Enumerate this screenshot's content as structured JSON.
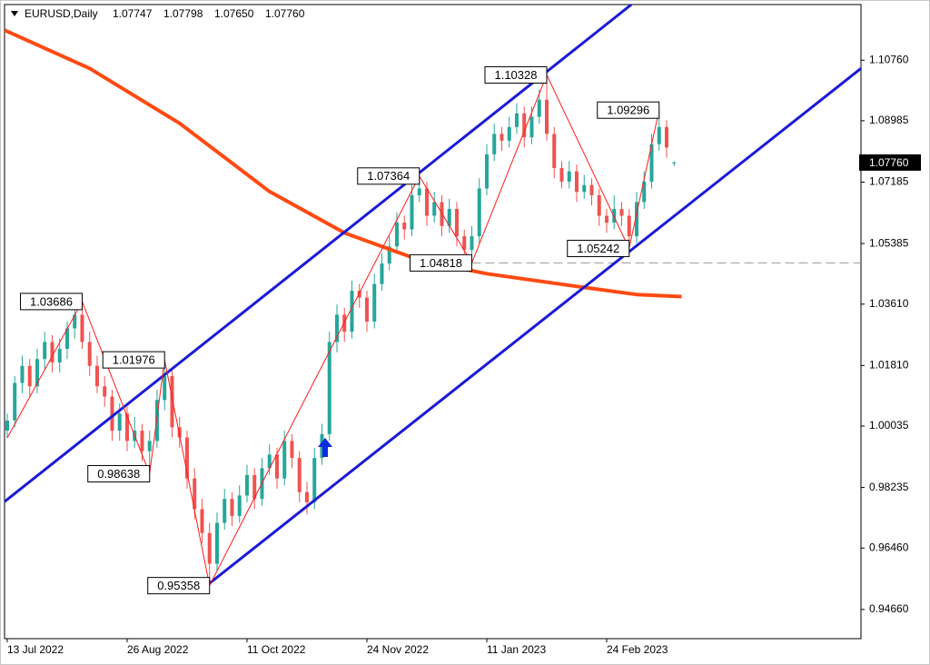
{
  "chart_data": {
    "type": "candlestick",
    "symbol": "EURUSD,Daily",
    "quote": [
      "1.07747",
      "1.07798",
      "1.07650",
      "1.07760"
    ],
    "last_label": "1.07760",
    "up_color": "#26a69a",
    "down_color": "#ef5350",
    "xlim": [
      -0.36,
      113.94
    ],
    "ylim": [
      0.93804,
      1.12391
    ],
    "xticks": [
      {
        "value": 0,
        "label": "13 Jul 2022"
      },
      {
        "value": 16,
        "label": "26 Aug 2022"
      },
      {
        "value": 32,
        "label": "11 Oct 2022"
      },
      {
        "value": 48,
        "label": "24 Nov 2022"
      },
      {
        "value": 64,
        "label": "11 Jan 2023"
      },
      {
        "value": 80,
        "label": "24 Feb 2023"
      }
    ],
    "yticks": [
      {
        "value": 1.1076,
        "label": "1.10760"
      },
      1.08985,
      1.07185,
      1.05385,
      {
        "value": 1.0361,
        "label": "1.03610"
      },
      {
        "value": 1.0181,
        "label": "1.01810"
      },
      1.00035,
      0.98235,
      {
        "value": 0.9646,
        "label": "0.96460"
      },
      {
        "value": 0.9466,
        "label": "0.94660"
      }
    ],
    "candles": [
      [
        0.999,
        1.004,
        0.9969,
        1.002
      ],
      [
        1.002,
        1.015,
        1.0,
        1.013
      ],
      [
        1.013,
        1.021,
        1.01,
        1.018
      ],
      [
        1.018,
        1.02,
        1.009,
        1.012
      ],
      [
        1.012,
        1.023,
        1.01,
        1.02
      ],
      [
        1.02,
        1.028,
        1.017,
        1.025
      ],
      [
        1.025,
        1.027,
        1.016,
        1.019
      ],
      [
        1.019,
        1.026,
        1.016,
        1.023
      ],
      [
        1.023,
        1.031,
        1.02,
        1.029
      ],
      [
        1.029,
        1.035,
        1.026,
        1.033
      ],
      [
        1.033,
        1.03686,
        1.023,
        1.025
      ],
      [
        1.025,
        1.028,
        1.015,
        1.018
      ],
      [
        1.018,
        1.021,
        1.01,
        1.012
      ],
      [
        1.012,
        1.015,
        1.006,
        1.009
      ],
      [
        1.009,
        1.011,
        0.996,
        0.999
      ],
      [
        0.999,
        1.007,
        0.996,
        1.004
      ],
      [
        1.004,
        1.006,
        0.993,
        0.996
      ],
      [
        0.996,
        1.003,
        0.994,
        0.999
      ],
      [
        0.999,
        1.001,
        0.99,
        0.993
      ],
      [
        0.993,
        0.999,
        0.98638,
        0.996
      ],
      [
        0.996,
        1.011,
        0.994,
        1.008
      ],
      [
        1.008,
        1.01976,
        1.005,
        1.015
      ],
      [
        1.015,
        1.017,
        0.997,
        1.0
      ],
      [
        1.0,
        1.003,
        0.994,
        0.997
      ],
      [
        0.997,
        0.999,
        0.982,
        0.985
      ],
      [
        0.985,
        0.988,
        0.973,
        0.976
      ],
      [
        0.976,
        0.979,
        0.966,
        0.969
      ],
      [
        0.969,
        0.972,
        0.95358,
        0.96
      ],
      [
        0.96,
        0.975,
        0.958,
        0.972
      ],
      [
        0.972,
        0.982,
        0.97,
        0.979
      ],
      [
        0.979,
        0.981,
        0.971,
        0.974
      ],
      [
        0.974,
        0.983,
        0.972,
        0.98
      ],
      [
        0.98,
        0.989,
        0.978,
        0.986
      ],
      [
        0.986,
        0.988,
        0.976,
        0.979
      ],
      [
        0.979,
        0.991,
        0.977,
        0.988
      ],
      [
        0.988,
        0.995,
        0.986,
        0.992
      ],
      [
        0.992,
        0.994,
        0.982,
        0.985
      ],
      [
        0.985,
        0.999,
        0.983,
        0.996
      ],
      [
        0.996,
        0.998,
        0.988,
        0.991
      ],
      [
        0.991,
        0.993,
        0.978,
        0.981
      ],
      [
        0.981,
        0.984,
        0.9745,
        0.978
      ],
      [
        0.978,
        0.994,
        0.976,
        0.991
      ],
      [
        0.991,
        1.001,
        0.989,
        0.998
      ],
      [
        0.998,
        1.028,
        0.996,
        1.025
      ],
      [
        1.025,
        1.036,
        1.022,
        1.033
      ],
      [
        1.033,
        1.035,
        1.025,
        1.028
      ],
      [
        1.028,
        1.043,
        1.026,
        1.04
      ],
      [
        1.04,
        1.042,
        1.035,
        1.038
      ],
      [
        1.038,
        1.04,
        1.028,
        1.031
      ],
      [
        1.031,
        1.045,
        1.029,
        1.042
      ],
      [
        1.042,
        1.051,
        1.04,
        1.048
      ],
      [
        1.048,
        1.056,
        1.046,
        1.053
      ],
      [
        1.053,
        1.063,
        1.051,
        1.06
      ],
      [
        1.06,
        1.062,
        1.055,
        1.058
      ],
      [
        1.058,
        1.071,
        1.056,
        1.068
      ],
      [
        1.068,
        1.07364,
        1.066,
        1.07
      ],
      [
        1.07,
        1.072,
        1.059,
        1.062
      ],
      [
        1.062,
        1.069,
        1.06,
        1.066
      ],
      [
        1.066,
        1.068,
        1.056,
        1.059
      ],
      [
        1.059,
        1.067,
        1.057,
        1.064
      ],
      [
        1.064,
        1.066,
        1.053,
        1.056
      ],
      [
        1.056,
        1.058,
        1.05,
        1.052
      ],
      [
        1.052,
        1.059,
        1.04818,
        1.056
      ],
      [
        1.056,
        1.073,
        1.054,
        1.07
      ],
      [
        1.07,
        1.083,
        1.068,
        1.08
      ],
      [
        1.08,
        1.089,
        1.078,
        1.086
      ],
      [
        1.086,
        1.088,
        1.081,
        1.084
      ],
      [
        1.084,
        1.091,
        1.082,
        1.088
      ],
      [
        1.088,
        1.095,
        1.086,
        1.092
      ],
      [
        1.092,
        1.094,
        1.082,
        1.085
      ],
      [
        1.085,
        1.094,
        1.083,
        1.091
      ],
      [
        1.091,
        1.099,
        1.089,
        1.096
      ],
      [
        1.096,
        1.10328,
        1.084,
        1.086
      ],
      [
        1.086,
        1.088,
        1.073,
        1.076
      ],
      [
        1.076,
        1.078,
        1.07,
        1.072
      ],
      [
        1.072,
        1.078,
        1.07,
        1.075
      ],
      [
        1.075,
        1.077,
        1.066,
        1.069
      ],
      [
        1.069,
        1.074,
        1.067,
        1.071
      ],
      [
        1.071,
        1.073,
        1.065,
        1.068
      ],
      [
        1.068,
        1.07,
        1.059,
        1.062
      ],
      [
        1.062,
        1.064,
        1.057,
        1.06
      ],
      [
        1.06,
        1.068,
        1.058,
        1.064
      ],
      [
        1.064,
        1.066,
        1.059,
        1.062
      ],
      [
        1.062,
        1.064,
        1.05242,
        1.056
      ],
      [
        1.056,
        1.069,
        1.054,
        1.066
      ],
      [
        1.066,
        1.075,
        1.064,
        1.072
      ],
      [
        1.072,
        1.086,
        1.07,
        1.083
      ],
      [
        1.083,
        1.09296,
        1.081,
        1.088
      ],
      [
        1.088,
        1.09,
        1.079,
        1.082
      ],
      [
        1.07747,
        1.07798,
        1.0765,
        1.0776
      ]
    ],
    "zigzag": {
      "color": "#ff1a1a",
      "x": [
        0,
        10,
        19,
        21,
        27,
        55,
        62,
        72,
        83,
        87
      ],
      "values": [
        0.9969,
        1.03686,
        0.98638,
        1.01976,
        0.95358,
        1.07364,
        1.04818,
        1.10328,
        1.05242,
        1.09296
      ]
    },
    "ma": {
      "color": "#ff4a12",
      "x": [
        -0.36,
        11,
        23,
        35,
        45,
        55,
        64,
        77,
        84,
        90
      ],
      "values": [
        1.1164,
        1.1052,
        1.0891,
        1.0691,
        1.057,
        1.049,
        1.045,
        1.041,
        1.0389,
        1.0383
      ]
    },
    "trendlines": [
      {
        "color": "#1a1ad6",
        "x": [
          -0.36,
          83.3
        ],
        "values": [
          0.9782,
          1.1239
        ]
      },
      {
        "color": "#1a1ad6",
        "x": [
          26.9,
          113.94
        ],
        "values": [
          0.9541,
          1.1052
        ]
      }
    ]
  }
}
